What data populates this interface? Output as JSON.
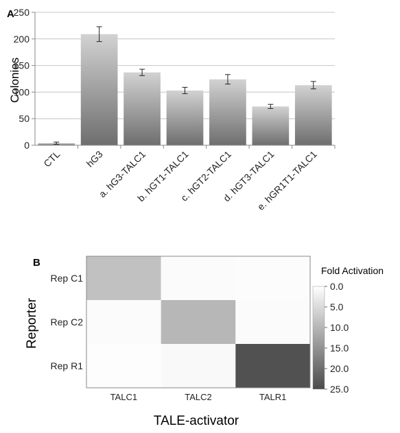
{
  "chart_data": [
    {
      "type": "bar",
      "panel_label": "A",
      "ylabel": "Colonies",
      "xlabel": "",
      "ylim": [
        0,
        250
      ],
      "yticks": [
        0,
        50,
        100,
        150,
        200,
        250
      ],
      "categories": [
        "CTL",
        "hG3",
        "a. hG3-TALC1",
        "b. hGT1-TALC1",
        "c. hGT2-TALC1",
        "d. hGT3-TALC1",
        "e. hGR1T1-TALC1"
      ],
      "values": [
        4,
        209,
        137,
        103,
        124,
        73,
        113
      ],
      "errors": [
        2,
        14,
        6,
        6,
        9,
        4,
        7
      ],
      "grid": true
    },
    {
      "type": "heatmap",
      "panel_label": "B",
      "xlabel": "TALE-activator",
      "ylabel": "Reporter",
      "x_categories": [
        "TALC1",
        "TALC2",
        "TALR1"
      ],
      "y_categories": [
        "Rep C1",
        "Rep C2",
        "Rep R1"
      ],
      "values": [
        [
          8.5,
          0.6,
          0.4
        ],
        [
          0.6,
          10.0,
          0.6
        ],
        [
          0.3,
          0.8,
          24.0
        ]
      ],
      "colorbar": {
        "title": "Fold Activation",
        "range": [
          0,
          25
        ],
        "ticks": [
          "0.0",
          "5.0",
          "10.0",
          "15.0",
          "20.0",
          "25.0"
        ],
        "colors": [
          "#ffffff",
          "#4a4a4a"
        ]
      }
    }
  ]
}
